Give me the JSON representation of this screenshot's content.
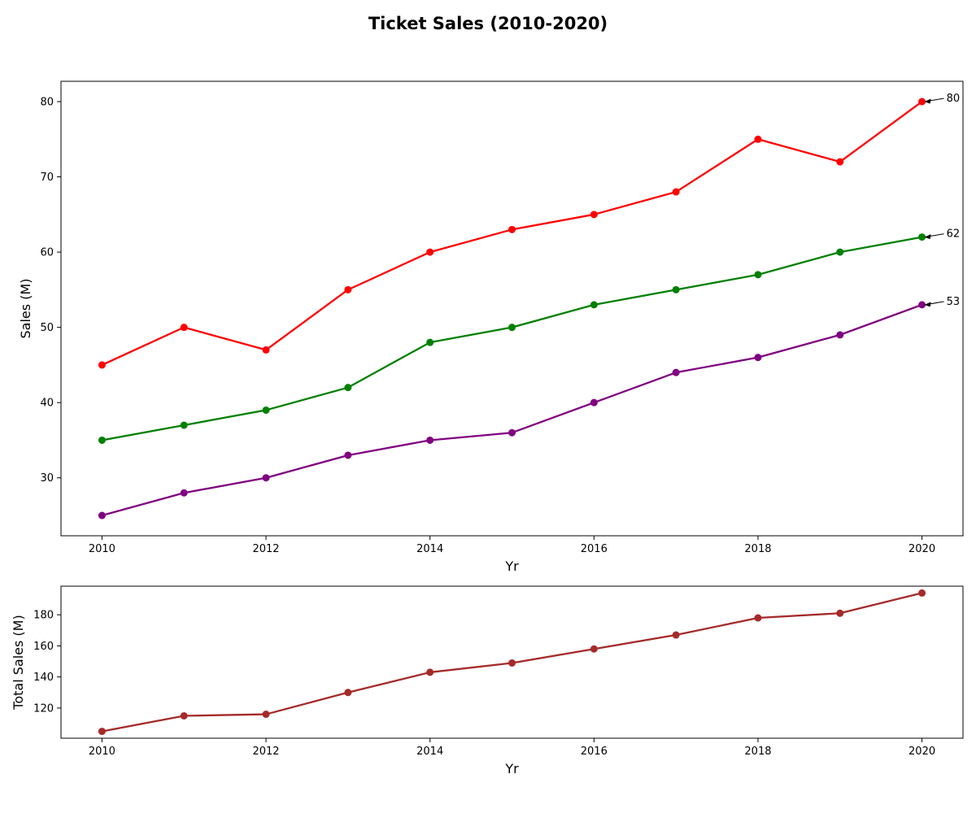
{
  "figure": {
    "title": "Ticket Sales (2010-2020)"
  },
  "chart_data": [
    {
      "type": "line",
      "xlabel": "Yr",
      "ylabel": "Sales (M)",
      "x": [
        2010,
        2011,
        2012,
        2013,
        2014,
        2015,
        2016,
        2017,
        2018,
        2019,
        2020
      ],
      "xlim": [
        2009.5,
        2020.5
      ],
      "ylim": [
        22.3,
        82.7
      ],
      "xticks": [
        2010,
        2012,
        2014,
        2016,
        2018,
        2020
      ],
      "yticks": [
        30,
        40,
        50,
        60,
        70,
        80
      ],
      "grid": false,
      "legend": "none",
      "series": [
        {
          "color": "#ff0000",
          "values": [
            45,
            50,
            47,
            55,
            60,
            63,
            65,
            68,
            75,
            72,
            80
          ],
          "end_label": "80"
        },
        {
          "color": "#008000",
          "values": [
            35,
            37,
            39,
            42,
            48,
            50,
            53,
            55,
            57,
            60,
            62
          ],
          "end_label": "62"
        },
        {
          "color": "#800080",
          "values": [
            25,
            28,
            30,
            33,
            35,
            36,
            40,
            44,
            46,
            49,
            53
          ],
          "end_label": "53"
        }
      ]
    },
    {
      "type": "line",
      "xlabel": "Yr",
      "ylabel": "Total Sales (M)",
      "x": [
        2010,
        2011,
        2012,
        2013,
        2014,
        2015,
        2016,
        2017,
        2018,
        2019,
        2020
      ],
      "xlim": [
        2009.5,
        2020.5
      ],
      "ylim": [
        100.6,
        198.4
      ],
      "xticks": [
        2010,
        2012,
        2014,
        2016,
        2018,
        2020
      ],
      "yticks": [
        120,
        140,
        160,
        180
      ],
      "grid": false,
      "legend": "none",
      "series": [
        {
          "color": "#a52a2a",
          "values": [
            105,
            115,
            116,
            130,
            143,
            149,
            158,
            167,
            178,
            181,
            194
          ]
        }
      ]
    }
  ]
}
